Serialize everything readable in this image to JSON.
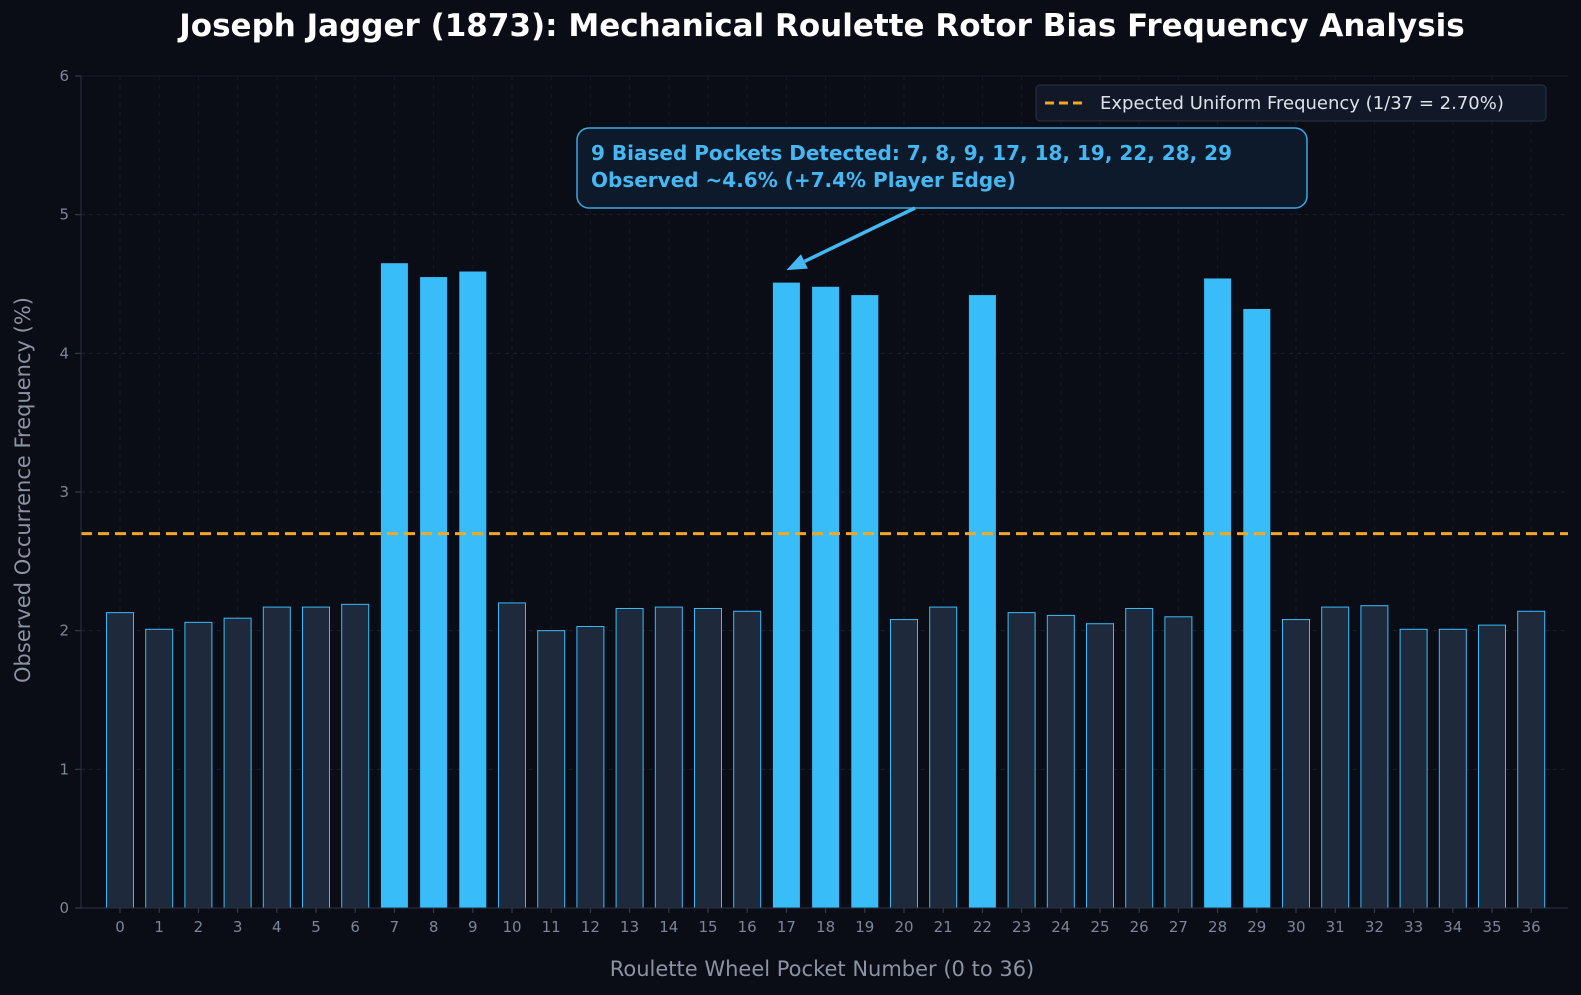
{
  "chart_data": {
    "type": "bar",
    "title": "Joseph Jagger (1873): Mechanical Roulette Rotor Bias Frequency Analysis",
    "xlabel": "Roulette Wheel Pocket Number (0 to 36)",
    "ylabel": "Observed Occurrence Frequency (%)",
    "ylim": [
      0,
      6
    ],
    "yticks": [
      "0",
      "1",
      "2",
      "3",
      "4",
      "5",
      "6"
    ],
    "grid": true,
    "categories": [
      "0",
      "1",
      "2",
      "3",
      "4",
      "5",
      "6",
      "7",
      "8",
      "9",
      "10",
      "11",
      "12",
      "13",
      "14",
      "15",
      "16",
      "17",
      "18",
      "19",
      "20",
      "21",
      "22",
      "23",
      "24",
      "25",
      "26",
      "27",
      "28",
      "29",
      "30",
      "31",
      "32",
      "33",
      "34",
      "35",
      "36"
    ],
    "values": [
      2.13,
      2.01,
      2.06,
      2.09,
      2.17,
      2.17,
      2.19,
      4.65,
      4.55,
      4.59,
      2.2,
      2.0,
      2.03,
      2.16,
      2.17,
      2.16,
      2.14,
      4.51,
      4.48,
      4.42,
      2.08,
      2.17,
      4.42,
      2.13,
      2.11,
      2.05,
      2.16,
      2.1,
      4.54,
      4.32,
      2.08,
      2.17,
      2.18,
      2.01,
      2.01,
      2.04,
      2.14
    ],
    "biased_pockets": [
      7,
      8,
      9,
      17,
      18,
      19,
      22,
      28,
      29
    ],
    "reference_line": {
      "value": 2.7,
      "label": "Expected Uniform Frequency (1/37 = 2.70%)",
      "color": "#f5a623"
    },
    "legend_position": "top-right",
    "annotation": {
      "lines": [
        "9 Biased Pockets Detected: 7, 8, 9, 17, 18, 19, 22, 28, 29",
        "Observed ~4.6% (+7.4% Player Edge)"
      ],
      "points_to_category": "17",
      "points_to_value": 4.6
    },
    "colors": {
      "biased_bar": "#38bdf8",
      "normal_bar": "#1e293b",
      "normal_bar_edge": "#38bdf8",
      "background": "#0a0d16",
      "annotation": "#45b8f3"
    }
  }
}
